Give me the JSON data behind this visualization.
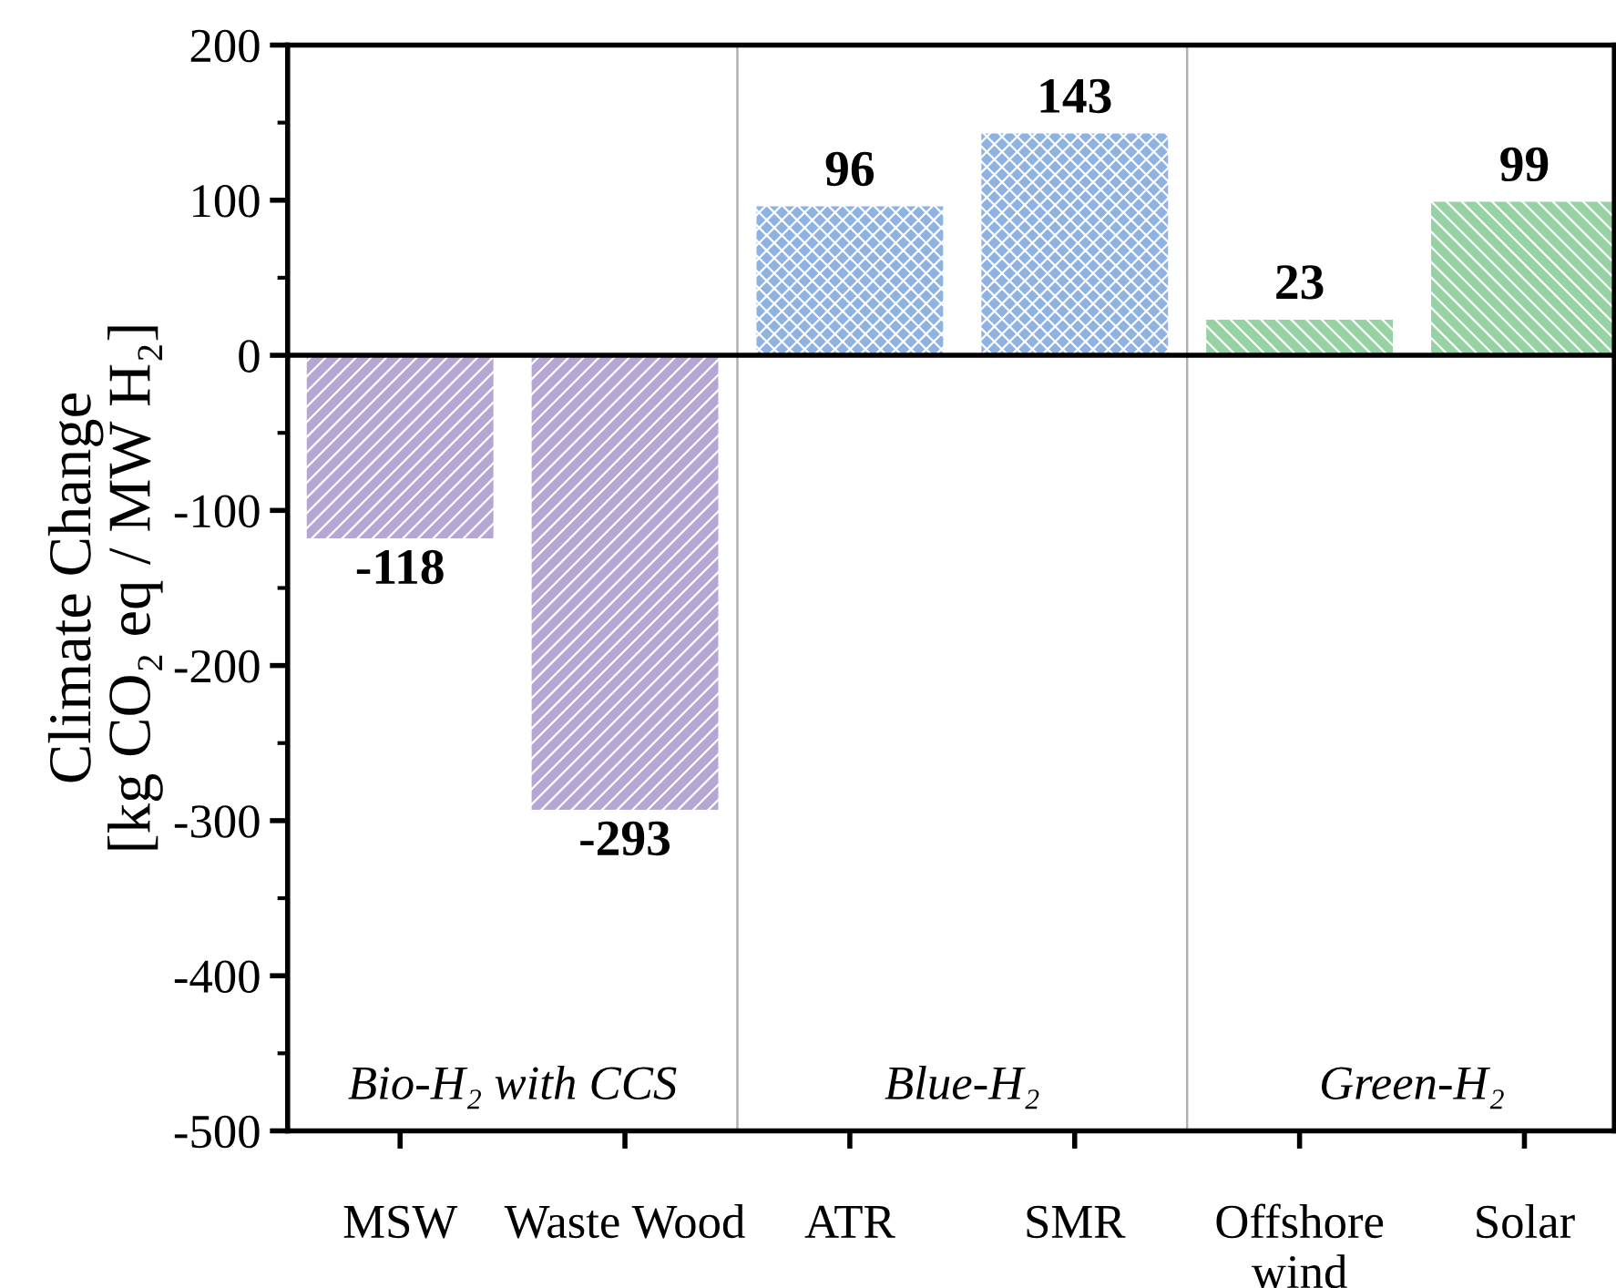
{
  "chart_data": {
    "type": "bar",
    "ylabel": "Climate Change\n[kg CO₂ eq / MW H₂]",
    "categories": [
      "MSW",
      "Waste Wood",
      "ATR",
      "SMR",
      "Offshore\nwind",
      "Solar"
    ],
    "values": [
      -118,
      -293,
      96,
      143,
      23,
      99
    ],
    "colors": [
      "#b4a7d3",
      "#b4a7d3",
      "#8eb2e2",
      "#8eb2e2",
      "#96d2a2",
      "#96d2a2"
    ],
    "data_labels": true,
    "ylim": [
      -500,
      200
    ],
    "yticks": [
      -500,
      -400,
      -300,
      -200,
      -100,
      0,
      100,
      200
    ],
    "annotations": [
      "Bio-H₂ with CCS",
      "Blue-H₂",
      "Green-H₂"
    ],
    "grid": false,
    "legend": false
  }
}
